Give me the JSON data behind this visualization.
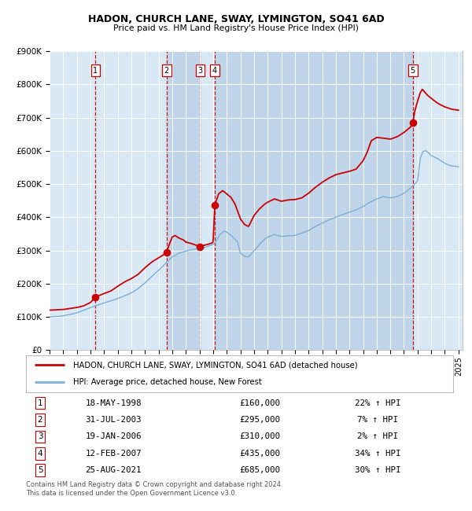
{
  "title1": "HADON, CHURCH LANE, SWAY, LYMINGTON, SO41 6AD",
  "title2": "Price paid vs. HM Land Registry's House Price Index (HPI)",
  "red_line_color": "#cc0000",
  "blue_line_color": "#7bafd4",
  "sale_dates_decimal": [
    1998.37,
    2003.58,
    2006.05,
    2007.12,
    2021.65
  ],
  "sale_prices": [
    160000,
    295000,
    310000,
    435000,
    685000
  ],
  "sale_labels": [
    "1",
    "2",
    "3",
    "4",
    "5"
  ],
  "sale_table": [
    {
      "num": "1",
      "date": "18-MAY-1998",
      "price": "£160,000",
      "hpi": "22% ↑ HPI"
    },
    {
      "num": "2",
      "date": "31-JUL-2003",
      "price": "£295,000",
      "hpi": "7% ↑ HPI"
    },
    {
      "num": "3",
      "date": "19-JAN-2006",
      "price": "£310,000",
      "hpi": "2% ↑ HPI"
    },
    {
      "num": "4",
      "date": "12-FEB-2007",
      "price": "£435,000",
      "hpi": "34% ↑ HPI"
    },
    {
      "num": "5",
      "date": "25-AUG-2021",
      "price": "£685,000",
      "hpi": "30% ↑ HPI"
    }
  ],
  "legend_line1": "HADON, CHURCH LANE, SWAY, LYMINGTON, SO41 6AD (detached house)",
  "legend_line2": "HPI: Average price, detached house, New Forest",
  "footer1": "Contains HM Land Registry data © Crown copyright and database right 2024.",
  "footer2": "This data is licensed under the Open Government Licence v3.0.",
  "ylim": [
    0,
    900000
  ],
  "ytick_vals": [
    0,
    100000,
    200000,
    300000,
    400000,
    500000,
    600000,
    700000,
    800000,
    900000
  ],
  "ytick_labels": [
    "£0",
    "£100K",
    "£200K",
    "£300K",
    "£400K",
    "£500K",
    "£600K",
    "£700K",
    "£800K",
    "£900K"
  ],
  "xlim_start": 1995.0,
  "xlim_end": 2025.3,
  "chart_bg": "#d8e8f5",
  "shade_color": "#c0d4ea",
  "red_anchors": [
    [
      1995.0,
      120000
    ],
    [
      1996.0,
      122000
    ],
    [
      1997.0,
      128000
    ],
    [
      1997.5,
      133000
    ],
    [
      1998.0,
      143000
    ],
    [
      1998.37,
      160000
    ],
    [
      1999.0,
      170000
    ],
    [
      1999.5,
      178000
    ],
    [
      2000.0,
      192000
    ],
    [
      2000.5,
      205000
    ],
    [
      2001.0,
      215000
    ],
    [
      2001.5,
      228000
    ],
    [
      2002.0,
      248000
    ],
    [
      2002.5,
      265000
    ],
    [
      2003.0,
      278000
    ],
    [
      2003.3,
      285000
    ],
    [
      2003.58,
      295000
    ],
    [
      2003.8,
      320000
    ],
    [
      2004.0,
      340000
    ],
    [
      2004.2,
      345000
    ],
    [
      2004.5,
      337000
    ],
    [
      2004.8,
      332000
    ],
    [
      2005.0,
      325000
    ],
    [
      2005.3,
      322000
    ],
    [
      2005.6,
      318000
    ],
    [
      2006.0,
      312000
    ],
    [
      2006.05,
      310000
    ],
    [
      2006.3,
      315000
    ],
    [
      2006.6,
      318000
    ],
    [
      2006.9,
      322000
    ],
    [
      2007.0,
      325000
    ],
    [
      2007.12,
      435000
    ],
    [
      2007.4,
      470000
    ],
    [
      2007.7,
      480000
    ],
    [
      2008.0,
      470000
    ],
    [
      2008.3,
      460000
    ],
    [
      2008.6,
      440000
    ],
    [
      2009.0,
      395000
    ],
    [
      2009.3,
      378000
    ],
    [
      2009.6,
      372000
    ],
    [
      2010.0,
      405000
    ],
    [
      2010.4,
      425000
    ],
    [
      2010.8,
      440000
    ],
    [
      2011.0,
      445000
    ],
    [
      2011.5,
      455000
    ],
    [
      2012.0,
      448000
    ],
    [
      2012.5,
      452000
    ],
    [
      2013.0,
      453000
    ],
    [
      2013.5,
      458000
    ],
    [
      2014.0,
      472000
    ],
    [
      2014.5,
      490000
    ],
    [
      2015.0,
      505000
    ],
    [
      2015.5,
      518000
    ],
    [
      2016.0,
      528000
    ],
    [
      2016.5,
      533000
    ],
    [
      2017.0,
      538000
    ],
    [
      2017.5,
      545000
    ],
    [
      2018.0,
      570000
    ],
    [
      2018.3,
      595000
    ],
    [
      2018.6,
      630000
    ],
    [
      2019.0,
      640000
    ],
    [
      2019.5,
      638000
    ],
    [
      2020.0,
      635000
    ],
    [
      2020.5,
      642000
    ],
    [
      2021.0,
      655000
    ],
    [
      2021.5,
      672000
    ],
    [
      2021.65,
      685000
    ],
    [
      2021.8,
      720000
    ],
    [
      2022.0,
      750000
    ],
    [
      2022.2,
      775000
    ],
    [
      2022.35,
      785000
    ],
    [
      2022.5,
      778000
    ],
    [
      2022.7,
      768000
    ],
    [
      2023.0,
      758000
    ],
    [
      2023.3,
      748000
    ],
    [
      2023.6,
      740000
    ],
    [
      2024.0,
      732000
    ],
    [
      2024.5,
      725000
    ],
    [
      2025.0,
      722000
    ]
  ],
  "blue_anchors": [
    [
      1995.0,
      100000
    ],
    [
      1995.5,
      101000
    ],
    [
      1996.0,
      103000
    ],
    [
      1996.5,
      107000
    ],
    [
      1997.0,
      112000
    ],
    [
      1997.5,
      120000
    ],
    [
      1998.0,
      128000
    ],
    [
      1998.5,
      135000
    ],
    [
      1999.0,
      142000
    ],
    [
      1999.5,
      148000
    ],
    [
      2000.0,
      155000
    ],
    [
      2000.5,
      163000
    ],
    [
      2001.0,
      172000
    ],
    [
      2001.5,
      185000
    ],
    [
      2002.0,
      202000
    ],
    [
      2002.5,
      222000
    ],
    [
      2003.0,
      240000
    ],
    [
      2003.5,
      260000
    ],
    [
      2003.58,
      265000
    ],
    [
      2004.0,
      280000
    ],
    [
      2004.5,
      292000
    ],
    [
      2005.0,
      298000
    ],
    [
      2005.5,
      303000
    ],
    [
      2006.0,
      305000
    ],
    [
      2006.5,
      310000
    ],
    [
      2007.0,
      318000
    ],
    [
      2007.12,
      322000
    ],
    [
      2007.5,
      348000
    ],
    [
      2007.8,
      358000
    ],
    [
      2008.0,
      355000
    ],
    [
      2008.4,
      342000
    ],
    [
      2008.8,
      325000
    ],
    [
      2009.0,
      292000
    ],
    [
      2009.3,
      282000
    ],
    [
      2009.6,
      280000
    ],
    [
      2010.0,
      298000
    ],
    [
      2010.4,
      318000
    ],
    [
      2010.8,
      335000
    ],
    [
      2011.0,
      340000
    ],
    [
      2011.5,
      348000
    ],
    [
      2012.0,
      342000
    ],
    [
      2012.5,
      344000
    ],
    [
      2013.0,
      345000
    ],
    [
      2013.5,
      352000
    ],
    [
      2014.0,
      360000
    ],
    [
      2014.5,
      372000
    ],
    [
      2015.0,
      382000
    ],
    [
      2015.5,
      392000
    ],
    [
      2016.0,
      400000
    ],
    [
      2016.5,
      408000
    ],
    [
      2017.0,
      415000
    ],
    [
      2017.5,
      422000
    ],
    [
      2018.0,
      432000
    ],
    [
      2018.5,
      445000
    ],
    [
      2019.0,
      455000
    ],
    [
      2019.5,
      462000
    ],
    [
      2020.0,
      458000
    ],
    [
      2020.5,
      462000
    ],
    [
      2021.0,
      472000
    ],
    [
      2021.5,
      488000
    ],
    [
      2021.65,
      495000
    ],
    [
      2022.0,
      508000
    ],
    [
      2022.2,
      578000
    ],
    [
      2022.4,
      598000
    ],
    [
      2022.6,
      600000
    ],
    [
      2022.8,
      594000
    ],
    [
      2023.0,
      585000
    ],
    [
      2023.4,
      578000
    ],
    [
      2023.8,
      568000
    ],
    [
      2024.0,
      562000
    ],
    [
      2024.4,
      555000
    ],
    [
      2025.0,
      552000
    ]
  ]
}
